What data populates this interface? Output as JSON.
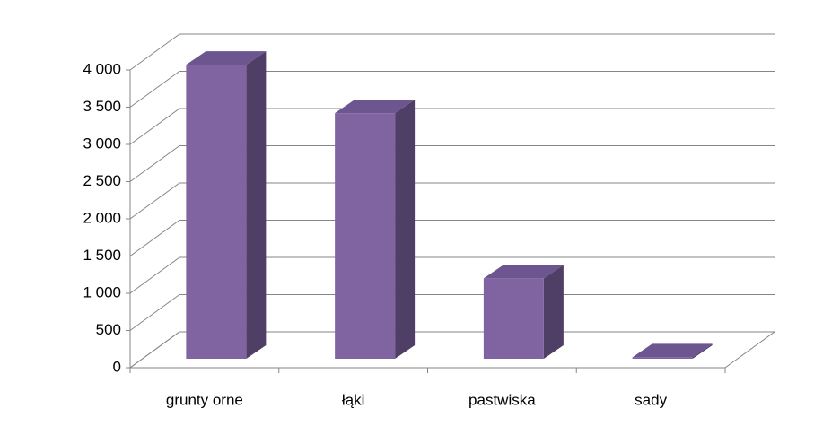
{
  "chart_data": {
    "type": "bar3d",
    "categories": [
      "grunty orne",
      "łąki",
      "pastwiska",
      "sady"
    ],
    "values": [
      3950,
      3300,
      1080,
      20
    ],
    "color": "#8064a2",
    "ylim": [
      0,
      4000
    ],
    "yticks": [
      0,
      500,
      {
        "value": 1000,
        "label": "1 000"
      },
      {
        "value": 1500,
        "label": "1 500"
      },
      {
        "value": 2000,
        "label": "2 000"
      },
      {
        "value": 2500,
        "label": "2 500"
      },
      {
        "value": 3000,
        "label": "3 000"
      },
      {
        "value": 3500,
        "label": "3 500"
      },
      {
        "value": 4000,
        "label": "4 000"
      }
    ],
    "grid": true
  }
}
